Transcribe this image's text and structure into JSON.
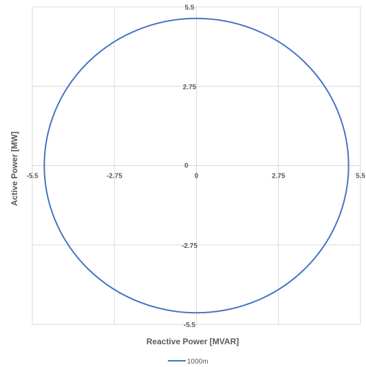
{
  "chart_data": {
    "type": "scatter",
    "title": "",
    "xlabel": "Reactive Power [MVAR]",
    "ylabel": "Active Power [MW]",
    "xlim": [
      -5.5,
      5.5
    ],
    "ylim": [
      -5.5,
      5.5
    ],
    "xticks": [
      -5.5,
      -2.75,
      0,
      2.75,
      5.5
    ],
    "yticks": [
      -5.5,
      -2.75,
      0,
      2.75,
      5.5
    ],
    "x_tick_labels": [
      "-5.5",
      "-2.75",
      "0",
      "2.75",
      "5.5"
    ],
    "y_tick_labels": [
      "-5.5",
      "-2.75",
      "0",
      "2.75",
      "5.5"
    ],
    "grid": true,
    "legend_position": "bottom",
    "series": [
      {
        "name": "1000m",
        "color": "#4472C4",
        "shape": "circle",
        "center": [
          0,
          0
        ],
        "radius": 5.1,
        "line_style": "smooth line, no markers"
      }
    ]
  },
  "colors": {
    "grid": "#d9d9d9",
    "text": "#595959",
    "series": "#4472C4"
  }
}
